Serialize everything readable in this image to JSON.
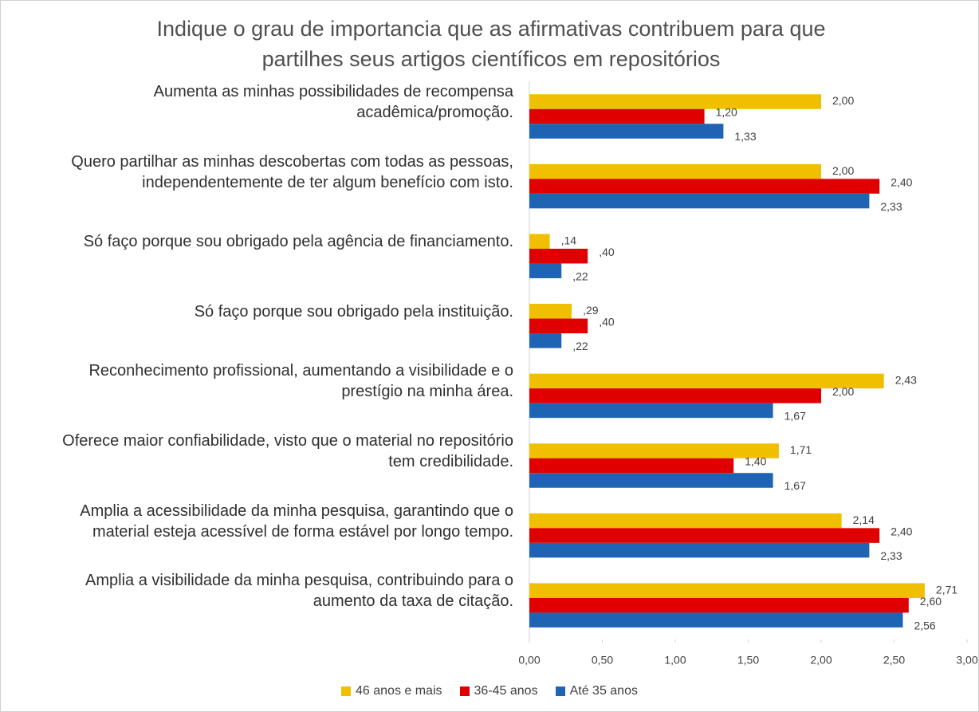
{
  "chart_data": {
    "type": "barh",
    "title": "Indique o grau de importancia que as afirmativas contribuem para que partilhes seus artigos científicos em repositórios",
    "categories": [
      "Aumenta as minhas possibilidades de recompensa acadêmica/promoção.",
      "Quero partilhar as minhas descobertas com todas as pessoas, independentemente de ter algum benefício com isto.",
      "Só faço porque sou obrigado pela agência de financiamento.",
      "Só faço porque sou obrigado pela instituição.",
      "Reconhecimento profissional, aumentando a visibilidade e o prestígio na minha área.",
      "Oferece maior confiabilidade, visto que o material no repositório tem credibilidade.",
      "Amplia a acessibilidade da minha pesquisa, garantindo que o material esteja acessível de forma estável por longo tempo.",
      "Amplia a visibilidade da minha pesquisa, contribuindo para o aumento da taxa de citação."
    ],
    "series": [
      {
        "name": "46 anos e mais",
        "color": "#f0c000",
        "values": [
          2.0,
          2.0,
          0.14,
          0.29,
          2.43,
          1.71,
          2.14,
          2.71
        ],
        "value_labels": [
          "2,00",
          "2,00",
          ",14",
          ",29",
          "2,43",
          "1,71",
          "2,14",
          "2,71"
        ]
      },
      {
        "name": "36-45 anos",
        "color": "#e00000",
        "values": [
          1.2,
          2.4,
          0.4,
          0.4,
          2.0,
          1.4,
          2.4,
          2.6
        ],
        "value_labels": [
          "1,20",
          "2,40",
          ",40",
          ",40",
          "2,00",
          "1,40",
          "2,40",
          "2,60"
        ]
      },
      {
        "name": "Até 35 anos",
        "color": "#1f64b4",
        "values": [
          1.33,
          2.33,
          0.22,
          0.22,
          1.67,
          1.67,
          2.33,
          2.56
        ],
        "value_labels": [
          "1,33",
          "2,33",
          ",22",
          ",22",
          "1,67",
          "1,67",
          "2,33",
          "2,56"
        ]
      }
    ],
    "xlim": [
      0,
      3
    ],
    "xticks": [
      {
        "value": 0,
        "label": "0,00"
      },
      {
        "value": 0.5,
        "label": "0,50"
      },
      {
        "value": 1,
        "label": "1,00"
      },
      {
        "value": 1.5,
        "label": "1,50"
      },
      {
        "value": 2,
        "label": "2,00"
      },
      {
        "value": 2.5,
        "label": "2,50"
      },
      {
        "value": 3,
        "label": "3,00"
      }
    ],
    "legend": "bottom"
  }
}
